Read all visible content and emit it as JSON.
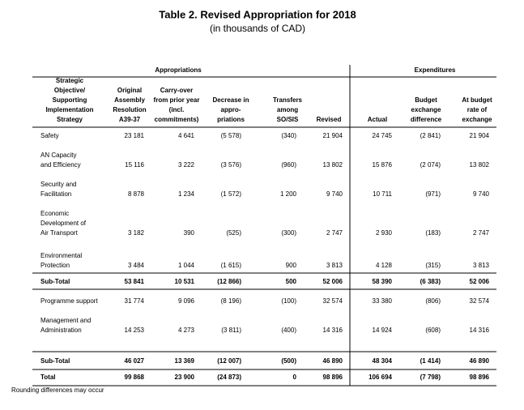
{
  "title": "Table 2.  Revised Appropriation for 2018",
  "subtitle": "(in thousands of CAD)",
  "groups": [
    "Appropriations",
    "Expenditures"
  ],
  "columns": [
    [
      "Strategic",
      "Objective/",
      "Supporting",
      "Implementation",
      "Strategy"
    ],
    [
      "Original",
      "Assembly",
      "Resolution",
      "A39-37"
    ],
    [
      "Carry-over",
      "from prior year",
      "(incl.",
      "commitments)"
    ],
    [
      "Decrease in",
      "appro-",
      "priations"
    ],
    [
      "Transfers",
      "among",
      "SO/SIS"
    ],
    [
      "Revised"
    ],
    [
      "Actual"
    ],
    [
      "Budget",
      "exchange",
      "difference"
    ],
    [
      "At budget",
      "rate of",
      "exchange"
    ]
  ],
  "rows": [
    {
      "label": [
        "Safety"
      ],
      "values": [
        "23 181",
        "4 641",
        "(5 578)",
        "(340)",
        "21 904",
        "24 745",
        "(2 841)",
        "21 904"
      ]
    },
    {
      "label": [
        "AN Capacity",
        "and Efficiency"
      ],
      "values": [
        "15 116",
        "3 222",
        "(3 576)",
        "(960)",
        "13 802",
        "15 876",
        "(2 074)",
        "13 802"
      ]
    },
    {
      "label": [
        "Security and",
        "Facilitation"
      ],
      "values": [
        "8 878",
        "1 234",
        "(1 572)",
        "1 200",
        "9 740",
        "10 711",
        "(971)",
        "9 740"
      ]
    },
    {
      "label": [
        "Economic",
        "Development of",
        "Air Transport"
      ],
      "values": [
        "3 182",
        "390",
        "(525)",
        "(300)",
        "2 747",
        "2 930",
        "(183)",
        "2 747"
      ]
    },
    {
      "label": [
        "Environmental",
        "Protection"
      ],
      "values": [
        "3 484",
        "1 044",
        "(1 615)",
        "900",
        "3 813",
        "4 128",
        "(315)",
        "3 813"
      ]
    },
    {
      "label": [
        "Sub-Total"
      ],
      "values": [
        "53 841",
        "10 531",
        "(12 866)",
        "500",
        "52 006",
        "58 390",
        "(6 383)",
        "52 006"
      ],
      "bold": true
    },
    {
      "label": [
        "Programme support"
      ],
      "values": [
        "31 774",
        "9 096",
        "(8 196)",
        "(100)",
        "32 574",
        "33 380",
        "(806)",
        "32 574"
      ]
    },
    {
      "label": [
        "Management and",
        "Administration"
      ],
      "values": [
        "14 253",
        "4 273",
        "(3 811)",
        "(400)",
        "14 316",
        "14 924",
        "(608)",
        "14 316"
      ]
    },
    {
      "label": [
        "Sub-Total"
      ],
      "values": [
        "46 027",
        "13 369",
        "(12 007)",
        "(500)",
        "46 890",
        "48 304",
        "(1 414)",
        "46 890"
      ],
      "bold": true
    },
    {
      "label": [
        "Total"
      ],
      "values": [
        "99 868",
        "23 900",
        "(24 873)",
        "0",
        "98 896",
        "106 694",
        "(7 798)",
        "98 896"
      ],
      "bold": true
    }
  ],
  "footnote": "Rounding differences may occur"
}
